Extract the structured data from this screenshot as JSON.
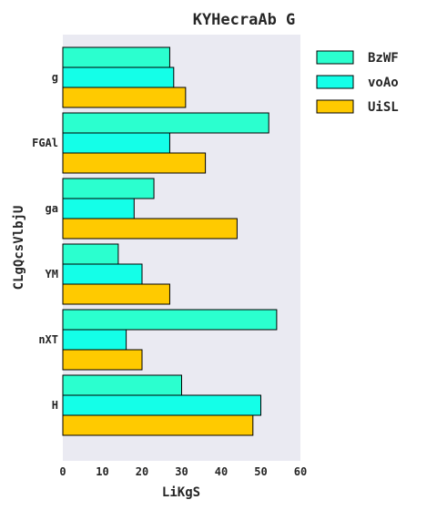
{
  "chart_data": {
    "type": "bar",
    "orientation": "horizontal",
    "title": "KYHecraAb G",
    "xlabel": "LiKgS",
    "ylabel": "CLgQcsVlbjU",
    "categories": [
      "g",
      "FGAl",
      "ga",
      "YM",
      "nXT",
      "H"
    ],
    "series": [
      {
        "name": "BzWF",
        "color": "#2bffcf",
        "values": [
          27,
          52,
          23,
          14,
          54,
          30
        ]
      },
      {
        "name": "voAo",
        "color": "#14ffe8",
        "values": [
          28,
          27,
          18,
          20,
          16,
          50
        ]
      },
      {
        "name": "UiSL",
        "color": "#ffca00",
        "values": [
          31,
          36,
          44,
          27,
          20,
          48
        ]
      }
    ],
    "xlim": [
      0,
      60
    ],
    "xticks": [
      "0",
      "10",
      "20",
      "30",
      "40",
      "50",
      "60"
    ],
    "grid": false,
    "background": "#eaeaf2",
    "legend_position": "top-right"
  }
}
